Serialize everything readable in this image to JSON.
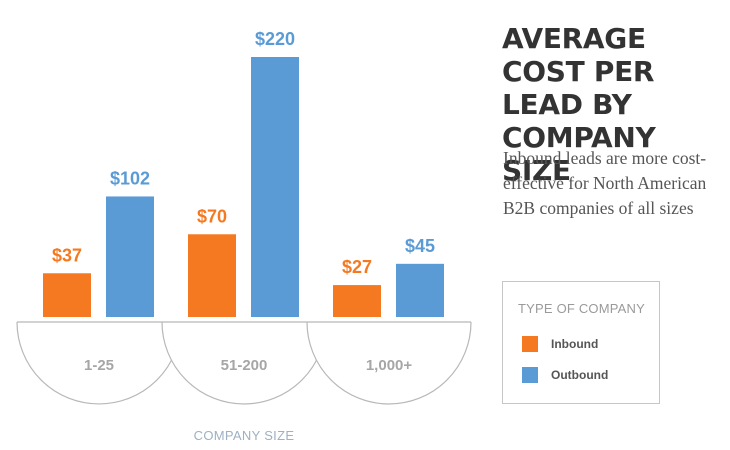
{
  "chart_data": {
    "type": "bar",
    "title": "AVERAGE COST PER LEAD BY COMPANY SIZE",
    "subtitle": "Inbound leads are more cost-effective for North American B2B companies of all sizes",
    "xlabel": "COMPANY SIZE",
    "ylabel": "",
    "categories": [
      "1-25",
      "51-200",
      "1,000+"
    ],
    "series": [
      {
        "name": "Inbound",
        "values": [
          37,
          70,
          27
        ],
        "labels": [
          "$37",
          "$70",
          "$27"
        ],
        "color": "#f47920"
      },
      {
        "name": "Outbound",
        "values": [
          102,
          220,
          45
        ],
        "labels": [
          "$102",
          "$220",
          "$45"
        ],
        "color": "#5b9bd5"
      }
    ],
    "ylim": [
      0,
      220
    ],
    "grid": false,
    "legend": {
      "title": "TYPE OF COMPANY",
      "placement": "right"
    }
  }
}
